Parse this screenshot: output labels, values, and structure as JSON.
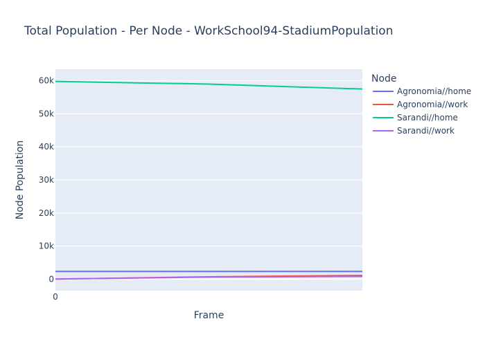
{
  "chart_data": {
    "type": "line",
    "title": "Total Population - Per Node - WorkSchool94-StadiumPopulation",
    "xlabel": "Frame",
    "ylabel": "Node Population",
    "x_tick_labels": [
      "0"
    ],
    "y_tick_labels": [
      "0",
      "10k",
      "20k",
      "30k",
      "40k",
      "50k",
      "60k"
    ],
    "y_ticks": [
      0,
      10000,
      20000,
      30000,
      40000,
      50000,
      60000
    ],
    "xlim": [
      0,
      2
    ],
    "ylim": [
      -3500,
      63500
    ],
    "grid": true,
    "legend_title": "Node",
    "legend_position": "right",
    "x": [
      0,
      1,
      2
    ],
    "series": [
      {
        "name": "Agronomia//home",
        "color": "#636efa",
        "values": [
          2300,
          2300,
          2300
        ]
      },
      {
        "name": "Agronomia//work",
        "color": "#ef553b",
        "values": [
          0,
          700,
          1100
        ]
      },
      {
        "name": "Sarandi//home",
        "color": "#00cc96",
        "values": [
          59800,
          59000,
          57500
        ]
      },
      {
        "name": "Sarandi//work",
        "color": "#ab63fa",
        "values": [
          0,
          600,
          800
        ]
      }
    ]
  }
}
